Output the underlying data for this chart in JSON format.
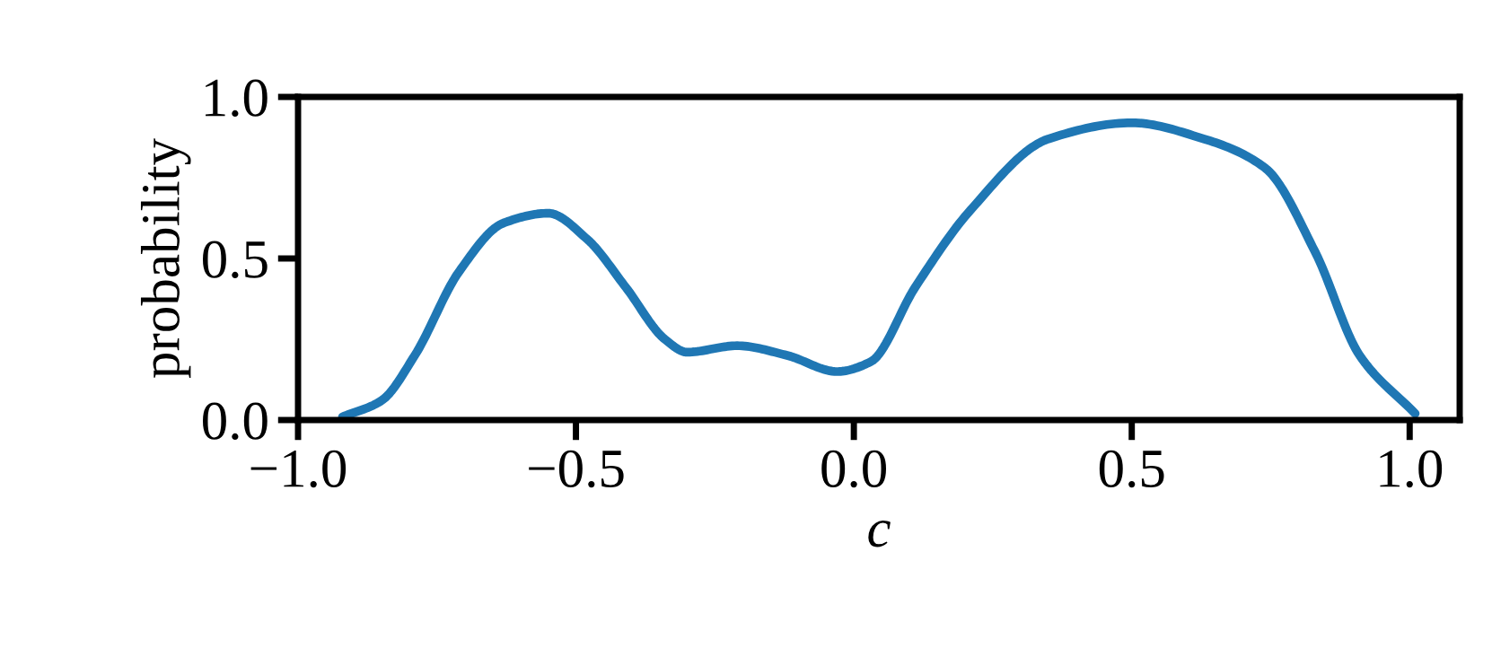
{
  "chart_data": {
    "type": "line",
    "xlabel": "c",
    "ylabel": "probability",
    "x": [
      -0.92,
      -0.85,
      -0.79,
      -0.71,
      -0.63,
      -0.55,
      -0.48,
      -0.41,
      -0.34,
      -0.3,
      -0.21,
      -0.12,
      -0.03,
      0.03,
      0.11,
      0.21,
      0.35,
      0.5,
      0.63,
      0.74,
      0.83,
      0.91,
      1.01
    ],
    "series": [
      {
        "color": "#1f77b4",
        "values": [
          0.01,
          0.06,
          0.2,
          0.46,
          0.61,
          0.64,
          0.56,
          0.41,
          0.25,
          0.21,
          0.23,
          0.2,
          0.15,
          0.18,
          0.41,
          0.65,
          0.87,
          0.92,
          0.87,
          0.78,
          0.52,
          0.2,
          0.02
        ]
      }
    ],
    "xlim": [
      -1.0,
      1.09
    ],
    "ylim": [
      0.0,
      1.0
    ],
    "xticks": [
      {
        "value": -1.0,
        "label": "−1.0"
      },
      {
        "value": -0.5,
        "label": "−0.5"
      },
      {
        "value": 0.0,
        "label": "0.0"
      },
      {
        "value": 0.5,
        "label": "0.5"
      },
      {
        "value": 1.0,
        "label": "1.0"
      }
    ],
    "yticks": [
      {
        "value": 0.0,
        "label": "0.0"
      },
      {
        "value": 0.5,
        "label": "0.5"
      },
      {
        "value": 1.0,
        "label": "1.0"
      }
    ],
    "grid": false,
    "line_style": "solid",
    "marker": "none"
  }
}
